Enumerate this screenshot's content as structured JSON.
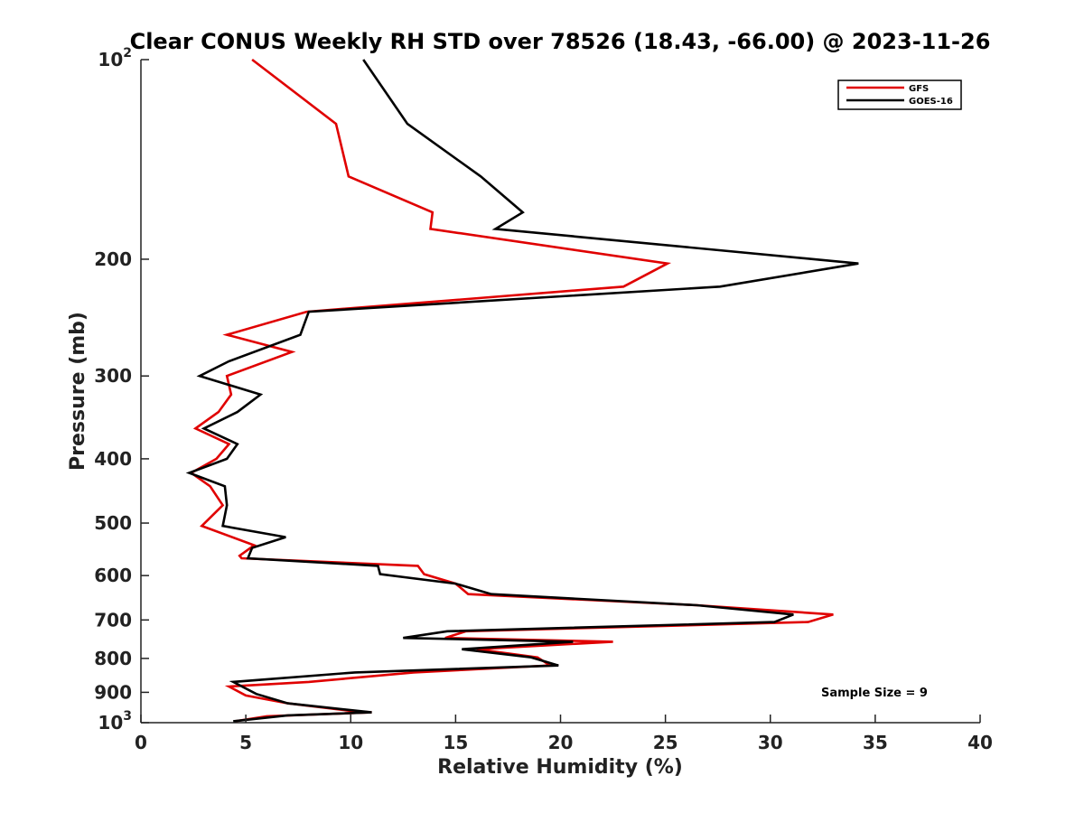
{
  "chart_data": {
    "type": "line",
    "title": "Clear CONUS Weekly RH STD over 78526 (18.43, -66.00) @ 2023-11-26",
    "xlabel": "Relative Humidity (%)",
    "ylabel": "Pressure (mb)",
    "xlim": [
      0,
      40
    ],
    "ylim": [
      100,
      1000
    ],
    "y_scale": "log",
    "y_reversed": true,
    "x_ticks": [
      "0",
      "5",
      "10",
      "15",
      "20",
      "25",
      "30",
      "35",
      "40"
    ],
    "y_ticks": [
      {
        "value": 100,
        "label": "10",
        "sup": "2"
      },
      {
        "value": 200,
        "label": "200"
      },
      {
        "value": 300,
        "label": "300"
      },
      {
        "value": 400,
        "label": "400"
      },
      {
        "value": 500,
        "label": "500"
      },
      {
        "value": 600,
        "label": "600"
      },
      {
        "value": 700,
        "label": "700"
      },
      {
        "value": 800,
        "label": "800"
      },
      {
        "value": 900,
        "label": "900"
      },
      {
        "value": 1000,
        "label": "10",
        "sup": "3"
      }
    ],
    "grid": false,
    "legend_position": "top-right",
    "annotation": "Sample Size = 9",
    "series": [
      {
        "name": "GFS",
        "color": "#e00000",
        "points": [
          [
            5.3,
            100
          ],
          [
            9.3,
            125
          ],
          [
            9.9,
            150
          ],
          [
            13.9,
            170
          ],
          [
            13.8,
            180
          ],
          [
            25.1,
            203
          ],
          [
            23.0,
            220
          ],
          [
            7.9,
            240
          ],
          [
            4.1,
            260
          ],
          [
            7.2,
            276
          ],
          [
            4.1,
            300
          ],
          [
            4.3,
            320
          ],
          [
            3.7,
            340
          ],
          [
            2.6,
            360
          ],
          [
            4.2,
            380
          ],
          [
            3.6,
            400
          ],
          [
            2.4,
            420
          ],
          [
            3.3,
            440
          ],
          [
            3.9,
            470
          ],
          [
            2.9,
            505
          ],
          [
            5.4,
            540
          ],
          [
            4.7,
            560
          ],
          [
            4.8,
            565
          ],
          [
            13.2,
            580
          ],
          [
            13.5,
            597
          ],
          [
            15.0,
            617
          ],
          [
            15.6,
            640
          ],
          [
            26.5,
            665
          ],
          [
            33.0,
            687
          ],
          [
            31.8,
            705
          ],
          [
            15.5,
            728
          ],
          [
            14.5,
            745
          ],
          [
            22.5,
            755
          ],
          [
            16.0,
            775
          ],
          [
            18.9,
            797
          ],
          [
            19.5,
            820
          ],
          [
            13.0,
            840
          ],
          [
            8.0,
            868
          ],
          [
            4.2,
            882
          ],
          [
            5.0,
            910
          ],
          [
            7.0,
            935
          ],
          [
            10.0,
            960
          ],
          [
            11.0,
            965
          ],
          [
            6.0,
            978
          ],
          [
            4.5,
            995
          ]
        ]
      },
      {
        "name": "GOES-16",
        "color": "#000000",
        "points": [
          [
            10.6,
            100
          ],
          [
            12.7,
            125
          ],
          [
            16.2,
            150
          ],
          [
            18.2,
            170
          ],
          [
            16.9,
            180
          ],
          [
            34.2,
            203
          ],
          [
            27.6,
            220
          ],
          [
            8.0,
            240
          ],
          [
            7.6,
            260
          ],
          [
            4.2,
            285
          ],
          [
            2.8,
            300
          ],
          [
            5.7,
            320
          ],
          [
            4.6,
            340
          ],
          [
            3.0,
            360
          ],
          [
            4.6,
            380
          ],
          [
            4.1,
            400
          ],
          [
            2.3,
            420
          ],
          [
            4.0,
            440
          ],
          [
            4.1,
            470
          ],
          [
            3.9,
            505
          ],
          [
            6.9,
            525
          ],
          [
            5.3,
            545
          ],
          [
            5.1,
            565
          ],
          [
            11.3,
            580
          ],
          [
            11.4,
            597
          ],
          [
            15.0,
            617
          ],
          [
            16.7,
            640
          ],
          [
            26.5,
            665
          ],
          [
            31.1,
            687
          ],
          [
            30.2,
            705
          ],
          [
            14.6,
            728
          ],
          [
            12.5,
            745
          ],
          [
            20.6,
            755
          ],
          [
            15.3,
            775
          ],
          [
            18.6,
            797
          ],
          [
            19.9,
            820
          ],
          [
            10.2,
            840
          ],
          [
            4.4,
            868
          ],
          [
            5.5,
            905
          ],
          [
            7.0,
            935
          ],
          [
            11.0,
            965
          ],
          [
            7.0,
            975
          ],
          [
            4.4,
            995
          ]
        ]
      }
    ]
  }
}
